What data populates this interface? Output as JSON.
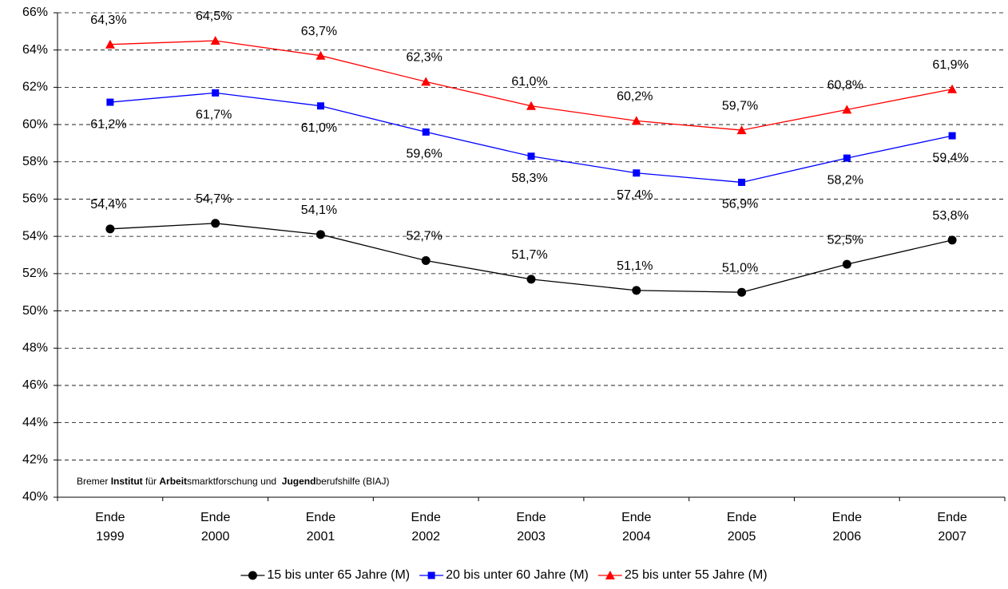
{
  "chart_data": {
    "type": "line",
    "categories": [
      "Ende 1999",
      "Ende 2000",
      "Ende 2001",
      "Ende 2002",
      "Ende 2003",
      "Ende 2004",
      "Ende 2005",
      "Ende 2006",
      "Ende 2007"
    ],
    "series": [
      {
        "name": "15 bis unter 65 Jahre (M)",
        "color": "#000000",
        "marker": "circle",
        "label_position": "above",
        "values": [
          54.4,
          54.7,
          54.1,
          52.7,
          51.7,
          51.1,
          51.0,
          52.5,
          53.8
        ],
        "value_labels": [
          "54,4%",
          "54,7%",
          "54,1%",
          "52,7%",
          "51,7%",
          "51,1%",
          "51,0%",
          "52,5%",
          "53,8%"
        ]
      },
      {
        "name": "20 bis unter 60 Jahre (M)",
        "color": "#0000ff",
        "marker": "square",
        "label_position": "below",
        "values": [
          61.2,
          61.7,
          61.0,
          59.6,
          58.3,
          57.4,
          56.9,
          58.2,
          59.4
        ],
        "value_labels": [
          "61,2%",
          "61,7%",
          "61,0%",
          "59,6%",
          "58,3%",
          "57,4%",
          "56,9%",
          "58,2%",
          "59,4%"
        ]
      },
      {
        "name": "25 bis unter 55 Jahre (M)",
        "color": "#ff0000",
        "marker": "triangle",
        "label_position": "above",
        "values": [
          64.3,
          64.5,
          63.7,
          62.3,
          61.0,
          60.2,
          59.7,
          60.8,
          61.9
        ],
        "value_labels": [
          "64,3%",
          "64,5%",
          "63,7%",
          "62,3%",
          "61,0%",
          "60,2%",
          "59,7%",
          "60,8%",
          "61,9%"
        ]
      }
    ],
    "ylim": [
      40,
      66
    ],
    "yticks": [
      {
        "value": 40,
        "label": "40%"
      },
      {
        "value": 42,
        "label": "42%"
      },
      {
        "value": 44,
        "label": "44%"
      },
      {
        "value": 46,
        "label": "46%"
      },
      {
        "value": 48,
        "label": "48%"
      },
      {
        "value": 50,
        "label": "50%"
      },
      {
        "value": 52,
        "label": "52%"
      },
      {
        "value": 54,
        "label": "54%"
      },
      {
        "value": 56,
        "label": "56%"
      },
      {
        "value": 58,
        "label": "58%"
      },
      {
        "value": 60,
        "label": "60%"
      },
      {
        "value": 62,
        "label": "62%"
      },
      {
        "value": 64,
        "label": "64%"
      },
      {
        "value": 66,
        "label": "66%"
      }
    ],
    "grid": true,
    "legend": "bottom",
    "source": [
      {
        "text": "Bremer ",
        "bold": false
      },
      {
        "text": "Institut",
        "bold": true
      },
      {
        "text": " für ",
        "bold": false
      },
      {
        "text": "Arbeit",
        "bold": true
      },
      {
        "text": "smarktforschung und  ",
        "bold": false
      },
      {
        "text": "Jugend",
        "bold": true
      },
      {
        "text": "berufshilfe (BIAJ)",
        "bold": false
      }
    ]
  }
}
